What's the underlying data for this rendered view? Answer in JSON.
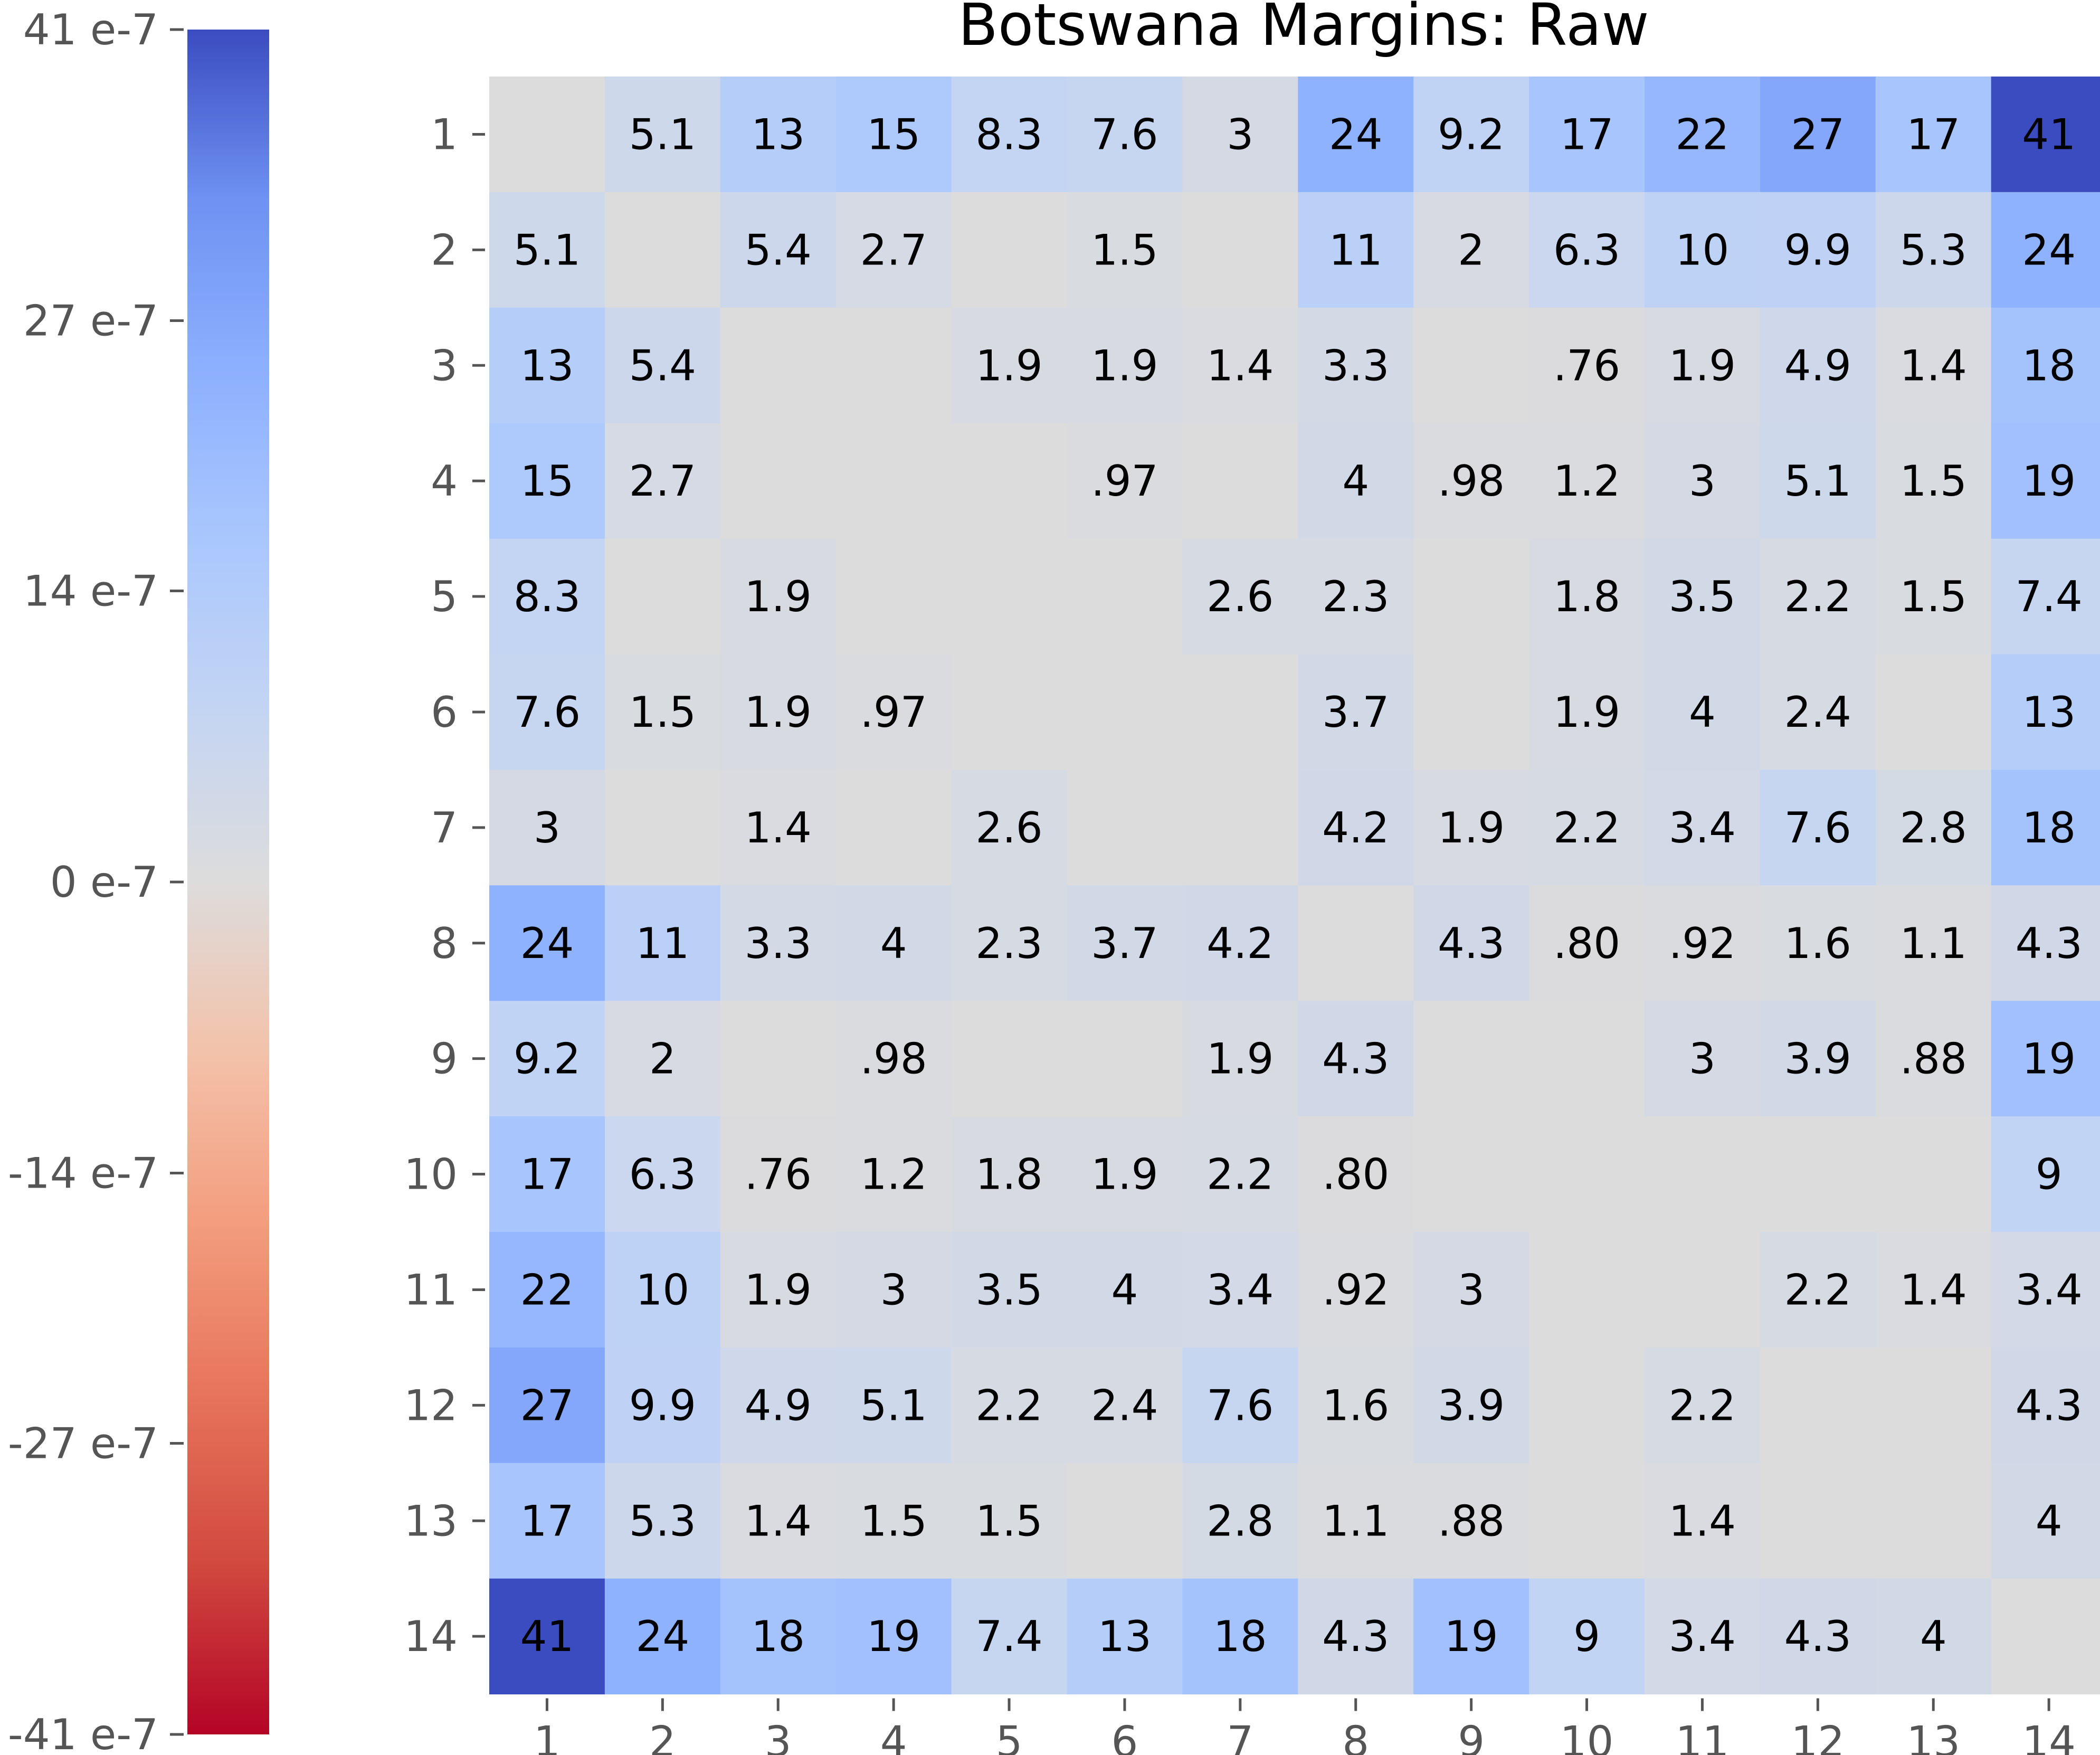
{
  "chart_data": {
    "type": "heatmap",
    "title": "Botswana Margins: Raw",
    "x_labels": [
      "1",
      "2",
      "3",
      "4",
      "5",
      "6",
      "7",
      "8",
      "9",
      "10",
      "11",
      "12",
      "13",
      "14"
    ],
    "y_labels": [
      "1",
      "2",
      "3",
      "4",
      "5",
      "6",
      "7",
      "8",
      "9",
      "10",
      "11",
      "12",
      "13",
      "14"
    ],
    "colormap": "coolwarm_r",
    "vmin": -41,
    "vmax": 41,
    "colorbar_ticks": [
      41,
      27,
      14,
      0,
      -14,
      -27,
      -41
    ],
    "colorbar_tick_labels": [
      "41 e-7",
      "27 e-7",
      "14 e-7",
      "0 e-7",
      "-14 e-7",
      "-27 e-7",
      "-41 e-7"
    ],
    "values": [
      [
        null,
        5.1,
        13,
        15,
        8.3,
        7.6,
        3,
        24,
        9.2,
        17,
        22,
        27,
        17,
        41
      ],
      [
        5.1,
        null,
        5.4,
        2.7,
        null,
        1.5,
        null,
        11,
        2,
        6.3,
        10,
        9.9,
        5.3,
        24
      ],
      [
        13,
        5.4,
        null,
        null,
        1.9,
        1.9,
        1.4,
        3.3,
        null,
        0.76,
        1.9,
        4.9,
        1.4,
        18
      ],
      [
        15,
        2.7,
        null,
        null,
        null,
        0.97,
        null,
        4,
        0.98,
        1.2,
        3,
        5.1,
        1.5,
        19
      ],
      [
        8.3,
        null,
        1.9,
        null,
        null,
        null,
        2.6,
        2.3,
        null,
        1.8,
        3.5,
        2.2,
        1.5,
        7.4
      ],
      [
        7.6,
        1.5,
        1.9,
        0.97,
        null,
        null,
        null,
        3.7,
        null,
        1.9,
        4,
        2.4,
        null,
        13
      ],
      [
        3,
        null,
        1.4,
        null,
        2.6,
        null,
        null,
        4.2,
        1.9,
        2.2,
        3.4,
        7.6,
        2.8,
        18
      ],
      [
        24,
        11,
        3.3,
        4,
        2.3,
        3.7,
        4.2,
        null,
        4.3,
        0.8,
        0.92,
        1.6,
        1.1,
        4.3
      ],
      [
        9.2,
        2,
        null,
        0.98,
        null,
        null,
        1.9,
        4.3,
        null,
        null,
        3,
        3.9,
        0.88,
        19
      ],
      [
        17,
        6.3,
        0.76,
        1.2,
        1.8,
        1.9,
        2.2,
        0.8,
        null,
        null,
        null,
        null,
        null,
        9
      ],
      [
        22,
        10,
        1.9,
        3,
        3.5,
        4,
        3.4,
        0.92,
        3,
        null,
        null,
        2.2,
        1.4,
        3.4
      ],
      [
        27,
        9.9,
        4.9,
        5.1,
        2.2,
        2.4,
        7.6,
        1.6,
        3.9,
        null,
        2.2,
        null,
        null,
        4.3
      ],
      [
        17,
        5.3,
        1.4,
        1.5,
        1.5,
        null,
        2.8,
        1.1,
        0.88,
        null,
        1.4,
        null,
        null,
        4
      ],
      [
        41,
        24,
        18,
        19,
        7.4,
        13,
        18,
        4.3,
        19,
        9,
        3.4,
        4.3,
        4,
        null
      ]
    ],
    "labels": [
      [
        "",
        "5.1",
        "13",
        "15",
        "8.3",
        "7.6",
        "3",
        "24",
        "9.2",
        "17",
        "22",
        "27",
        "17",
        "41"
      ],
      [
        "5.1",
        "",
        "5.4",
        "2.7",
        "",
        "1.5",
        "",
        "11",
        "2",
        "6.3",
        "10",
        "9.9",
        "5.3",
        "24"
      ],
      [
        "13",
        "5.4",
        "",
        "",
        "1.9",
        "1.9",
        "1.4",
        "3.3",
        "",
        ".76",
        "1.9",
        "4.9",
        "1.4",
        "18"
      ],
      [
        "15",
        "2.7",
        "",
        "",
        "",
        ".97",
        "",
        "4",
        ".98",
        "1.2",
        "3",
        "5.1",
        "1.5",
        "19"
      ],
      [
        "8.3",
        "",
        "1.9",
        "",
        "",
        "",
        "2.6",
        "2.3",
        "",
        "1.8",
        "3.5",
        "2.2",
        "1.5",
        "7.4"
      ],
      [
        "7.6",
        "1.5",
        "1.9",
        ".97",
        "",
        "",
        "",
        "3.7",
        "",
        "1.9",
        "4",
        "2.4",
        "",
        "13"
      ],
      [
        "3",
        "",
        "1.4",
        "",
        "2.6",
        "",
        "",
        "4.2",
        "1.9",
        "2.2",
        "3.4",
        "7.6",
        "2.8",
        "18"
      ],
      [
        "24",
        "11",
        "3.3",
        "4",
        "2.3",
        "3.7",
        "4.2",
        "",
        "4.3",
        ".80",
        ".92",
        "1.6",
        "1.1",
        "4.3"
      ],
      [
        "9.2",
        "2",
        "",
        ".98",
        "",
        "",
        "1.9",
        "4.3",
        "",
        "",
        "3",
        "3.9",
        ".88",
        "19"
      ],
      [
        "17",
        "6.3",
        ".76",
        "1.2",
        "1.8",
        "1.9",
        "2.2",
        ".80",
        "",
        "",
        "",
        "",
        "",
        "9"
      ],
      [
        "22",
        "10",
        "1.9",
        "3",
        "3.5",
        "4",
        "3.4",
        ".92",
        "3",
        "",
        "",
        "2.2",
        "1.4",
        "3.4"
      ],
      [
        "27",
        "9.9",
        "4.9",
        "5.1",
        "2.2",
        "2.4",
        "7.6",
        "1.6",
        "3.9",
        "",
        "2.2",
        "",
        "",
        "4.3"
      ],
      [
        "17",
        "5.3",
        "1.4",
        "1.5",
        "1.5",
        "",
        "2.8",
        "1.1",
        ".88",
        "",
        "1.4",
        "",
        "",
        "4"
      ],
      [
        "41",
        "24",
        "18",
        "19",
        "7.4",
        "13",
        "18",
        "4.3",
        "19",
        "9",
        "3.4",
        "4.3",
        "4",
        ""
      ]
    ],
    "empty_cell_color": "#dcdcdc"
  }
}
